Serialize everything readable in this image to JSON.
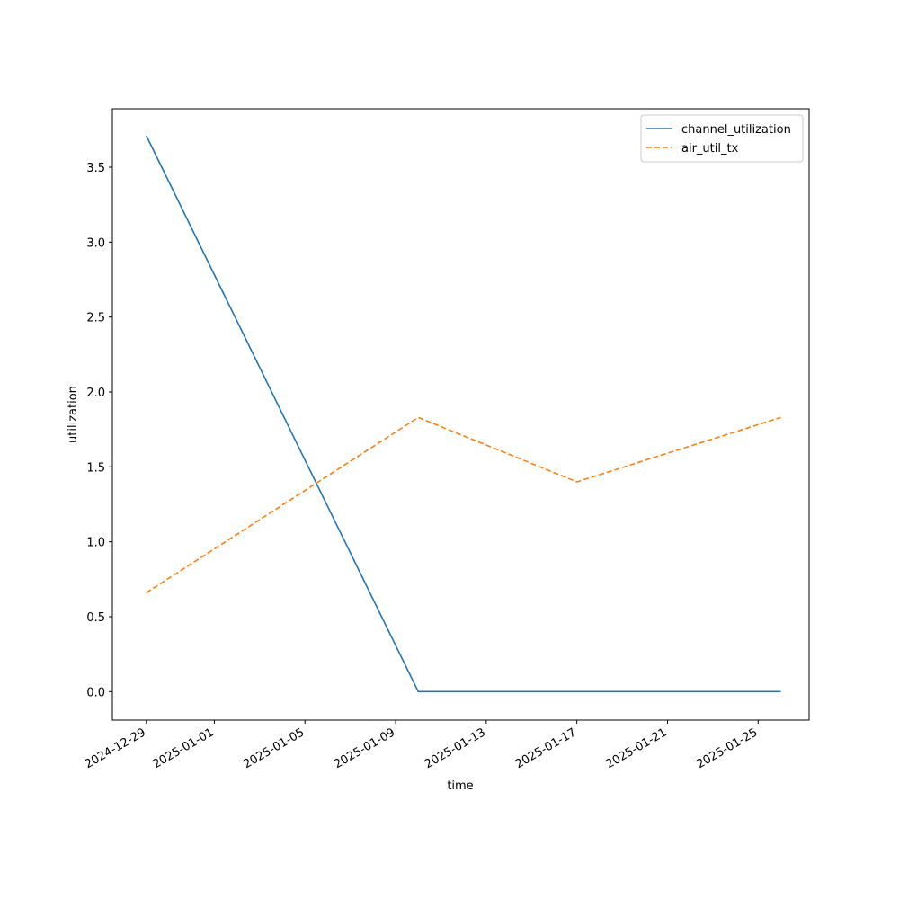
{
  "chart_data": {
    "type": "line",
    "x_label": "time",
    "y_label": "utilization",
    "x": [
      "2024-12-29",
      "2025-01-10",
      "2025-01-17",
      "2025-01-26"
    ],
    "series": [
      {
        "name": "channel_utilization",
        "color": "#1f77b4",
        "linestyle": "solid",
        "values": [
          3.71,
          0,
          0,
          0
        ]
      },
      {
        "name": "air_util_tx",
        "color": "#ff7f0e",
        "linestyle": "dashed",
        "values": [
          0.66,
          1.83,
          1.4,
          1.83
        ]
      }
    ],
    "xlim": [
      "2024-12-27T12:00:00Z",
      "2025-01-27T06:00:00Z"
    ],
    "xticks": [
      "2024-12-29",
      "2025-01-01",
      "2025-01-05",
      "2025-01-09",
      "2025-01-13",
      "2025-01-17",
      "2025-01-21",
      "2025-01-25"
    ],
    "ylim": [
      -0.19,
      3.89
    ],
    "yticks": [
      {
        "value": 0,
        "label": "0.0"
      },
      {
        "value": 0.5,
        "label": "0.5"
      },
      {
        "value": 1,
        "label": "1.0"
      },
      {
        "value": 1.5,
        "label": "1.5"
      },
      {
        "value": 2,
        "label": "2.0"
      },
      {
        "value": 2.5,
        "label": "2.5"
      },
      {
        "value": 3,
        "label": "3.0"
      },
      {
        "value": 3.5,
        "label": "3.5"
      }
    ],
    "legend": "upper right",
    "grid": false
  }
}
